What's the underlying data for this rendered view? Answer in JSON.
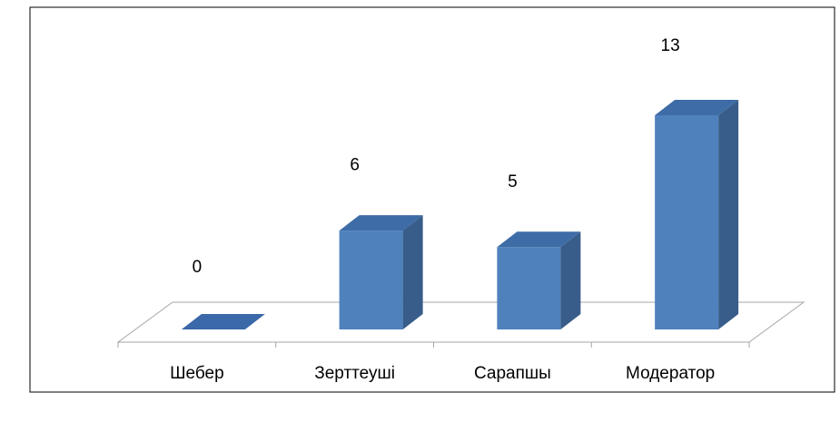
{
  "chart_data": {
    "type": "bar3d",
    "categories": [
      "Шебер",
      "Зерттеуші",
      "Сарапшы",
      "Модератор"
    ],
    "values": [
      0,
      6,
      5,
      13
    ],
    "color": "#4f81bd"
  }
}
